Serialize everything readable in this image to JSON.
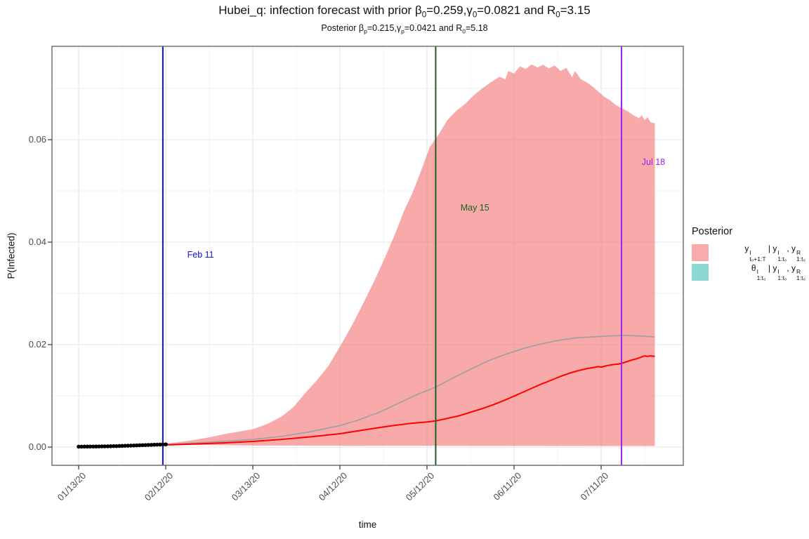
{
  "chart_data": {
    "type": "area",
    "title": "Hubei_q: infection forecast with prior β₀=0.259,γ₀=0.0821 and R₀=3.15",
    "subtitle": "Posterior βₚ=0.215,γₚ=0.0421 and R₀=5.18",
    "title_parts": [
      {
        "t": "Hubei_q: infection forecast with prior β"
      },
      {
        "s": "0"
      },
      {
        "t": "=0.259,γ"
      },
      {
        "s": "0"
      },
      {
        "t": "=0.0821 and R"
      },
      {
        "s": "0"
      },
      {
        "t": "=3.15"
      }
    ],
    "subtitle_parts": [
      {
        "t": "Posterior β"
      },
      {
        "s": "p"
      },
      {
        "t": "=0.215,γ"
      },
      {
        "s": "p"
      },
      {
        "t": "=0.0421 and R"
      },
      {
        "s": "0"
      },
      {
        "t": "=5.18"
      }
    ],
    "x_label": "time",
    "y_label": "P(Infected)",
    "x_domain_days": [
      -9.2,
      208.3
    ],
    "y_domain": [
      -0.00356,
      0.07822
    ],
    "x_ticks": [
      {
        "label": "01/13/20",
        "day": 0
      },
      {
        "label": "02/12/20",
        "day": 30
      },
      {
        "label": "03/13/20",
        "day": 60
      },
      {
        "label": "04/12/20",
        "day": 90
      },
      {
        "label": "05/12/20",
        "day": 120
      },
      {
        "label": "06/11/20",
        "day": 150
      },
      {
        "label": "07/11/20",
        "day": 180
      }
    ],
    "x_minor_days": [
      15,
      45,
      75,
      105,
      135,
      165,
      195
    ],
    "y_ticks": [
      {
        "label": "0.00",
        "value": 0
      },
      {
        "label": "0.02",
        "value": 0.02
      },
      {
        "label": "0.04",
        "value": 0.04
      },
      {
        "label": "0.06",
        "value": 0.06
      }
    ],
    "y_minor": [
      0.01,
      0.03,
      0.05,
      0.07
    ],
    "grid": true,
    "legend_position": "right",
    "colors": {
      "ribbon_fill": "rgba(243,118,118,0.62)",
      "ribbon_legend": "#F8ABAB",
      "theta_legend": "#8BD8D4",
      "median_line": "#FF0000",
      "gray_mean_line": "#A0A0A0",
      "observed_points": "#000000",
      "grid_major": "#E4E4E4",
      "grid_minor": "#F2F2F2",
      "panel_border": "#707070",
      "axis_text": "#4D4D4D"
    },
    "vlines": [
      {
        "label": "Feb 11",
        "date_day": 29,
        "color": "#0F0FDD",
        "label_day": 42,
        "label_value": 0.0374
      },
      {
        "label": "May 15",
        "date_day": 123,
        "color": "#1F5C1F",
        "label_day": 136.5,
        "label_value": 0.0466
      },
      {
        "label": "Jul 18",
        "date_day": 187,
        "color": "#A020F0",
        "label_day": 198,
        "label_value": 0.0555
      }
    ],
    "observed": {
      "name": "observed infected proportion (black points)",
      "days": [
        0,
        1,
        2,
        3,
        4,
        5,
        6,
        7,
        8,
        9,
        10,
        11,
        12,
        13,
        14,
        15,
        16,
        17,
        18,
        19,
        20,
        21,
        22,
        23,
        24,
        25,
        26,
        27,
        28,
        29,
        30
      ],
      "values": [
        8e-05,
        8e-05,
        9e-05,
        9e-05,
        0.0001,
        0.0001,
        0.00011,
        0.00012,
        0.00013,
        0.00014,
        0.00015,
        0.00016,
        0.00018,
        0.00019,
        0.00021,
        0.00023,
        0.00025,
        0.00027,
        0.00029,
        0.00031,
        0.00033,
        0.00035,
        0.00037,
        0.00039,
        0.00041,
        0.00043,
        0.00045,
        0.00047,
        0.00049,
        0.00051,
        0.00053
      ]
    },
    "ribbon": {
      "name": "posterior forecast credible band",
      "upper": [
        [
          29,
          0.0006
        ],
        [
          35,
          0.001
        ],
        [
          40,
          0.0014
        ],
        [
          45,
          0.0019
        ],
        [
          50,
          0.0025
        ],
        [
          55,
          0.003
        ],
        [
          60,
          0.0035
        ],
        [
          65,
          0.0045
        ],
        [
          70,
          0.006
        ],
        [
          74,
          0.0078
        ],
        [
          78,
          0.0105
        ],
        [
          82,
          0.013
        ],
        [
          86,
          0.0158
        ],
        [
          90,
          0.0196
        ],
        [
          94,
          0.0236
        ],
        [
          98,
          0.028
        ],
        [
          102,
          0.0326
        ],
        [
          106,
          0.0376
        ],
        [
          109,
          0.0416
        ],
        [
          112,
          0.046
        ],
        [
          115,
          0.0496
        ],
        [
          118,
          0.054
        ],
        [
          121,
          0.0586
        ],
        [
          124,
          0.061
        ],
        [
          127,
          0.0638
        ],
        [
          130,
          0.0656
        ],
        [
          133,
          0.0669
        ],
        [
          136,
          0.0686
        ],
        [
          139,
          0.07
        ],
        [
          142,
          0.0712
        ],
        [
          145,
          0.0723
        ],
        [
          147,
          0.0718
        ],
        [
          148,
          0.0734
        ],
        [
          150,
          0.0729
        ],
        [
          152,
          0.0743
        ],
        [
          154,
          0.0738
        ],
        [
          156,
          0.0747
        ],
        [
          158,
          0.0741
        ],
        [
          160,
          0.0746
        ],
        [
          162,
          0.0739
        ],
        [
          164,
          0.0745
        ],
        [
          166,
          0.0734
        ],
        [
          168,
          0.074
        ],
        [
          170,
          0.0722
        ],
        [
          171,
          0.0734
        ],
        [
          173,
          0.0718
        ],
        [
          175,
          0.0712
        ],
        [
          177,
          0.0704
        ],
        [
          179,
          0.0694
        ],
        [
          181,
          0.0684
        ],
        [
          183,
          0.0677
        ],
        [
          185,
          0.0668
        ],
        [
          187,
          0.0662
        ],
        [
          189,
          0.0656
        ],
        [
          191,
          0.0648
        ],
        [
          193,
          0.0642
        ],
        [
          194,
          0.0648
        ],
        [
          195,
          0.0638
        ],
        [
          196,
          0.0644
        ],
        [
          197,
          0.0634
        ],
        [
          198.5,
          0.0632
        ]
      ],
      "lower": [
        [
          29,
          0.0005
        ],
        [
          60,
          0.0003
        ],
        [
          120,
          0.00025
        ],
        [
          198.5,
          0.0002
        ]
      ]
    },
    "series": [
      {
        "name": "posterior median forecast (red line)",
        "color": "#FF0000",
        "points": [
          [
            29,
            0.0004
          ],
          [
            40,
            0.0006
          ],
          [
            50,
            0.0008
          ],
          [
            60,
            0.0011
          ],
          [
            70,
            0.0015
          ],
          [
            80,
            0.002
          ],
          [
            90,
            0.0026
          ],
          [
            100,
            0.0035
          ],
          [
            107,
            0.0041
          ],
          [
            114,
            0.0046
          ],
          [
            120,
            0.0049
          ],
          [
            123,
            0.0051
          ],
          [
            127,
            0.0056
          ],
          [
            131,
            0.0061
          ],
          [
            135,
            0.0068
          ],
          [
            139,
            0.0075
          ],
          [
            143,
            0.0083
          ],
          [
            147,
            0.0092
          ],
          [
            151,
            0.0102
          ],
          [
            155,
            0.0112
          ],
          [
            159,
            0.0122
          ],
          [
            163,
            0.0131
          ],
          [
            166,
            0.0138
          ],
          [
            169,
            0.0144
          ],
          [
            172,
            0.0149
          ],
          [
            175,
            0.0153
          ],
          [
            177,
            0.0155
          ],
          [
            179,
            0.0157
          ],
          [
            180,
            0.0156
          ],
          [
            182,
            0.0159
          ],
          [
            184,
            0.0161
          ],
          [
            186,
            0.0162
          ],
          [
            188,
            0.0165
          ],
          [
            190,
            0.0169
          ],
          [
            192,
            0.0172
          ],
          [
            194,
            0.0176
          ],
          [
            195,
            0.0178
          ],
          [
            196,
            0.0177
          ],
          [
            197,
            0.0178
          ],
          [
            198.5,
            0.0177
          ]
        ]
      },
      {
        "name": "mean trajectory (gray line)",
        "color": "#A0A0A0",
        "points": [
          [
            29,
            0.0005
          ],
          [
            40,
            0.0008
          ],
          [
            50,
            0.0011
          ],
          [
            60,
            0.0015
          ],
          [
            70,
            0.0021
          ],
          [
            80,
            0.003
          ],
          [
            90,
            0.0042
          ],
          [
            97,
            0.0054
          ],
          [
            104,
            0.0069
          ],
          [
            110,
            0.0085
          ],
          [
            116,
            0.0101
          ],
          [
            123,
            0.0117
          ],
          [
            129,
            0.0135
          ],
          [
            135,
            0.0152
          ],
          [
            141,
            0.0168
          ],
          [
            147,
            0.0181
          ],
          [
            153,
            0.0192
          ],
          [
            159,
            0.0201
          ],
          [
            165,
            0.0208
          ],
          [
            171,
            0.0213
          ],
          [
            177,
            0.0215
          ],
          [
            183,
            0.0217
          ],
          [
            188,
            0.0218
          ],
          [
            193,
            0.0217
          ],
          [
            198.5,
            0.0215
          ]
        ]
      }
    ],
    "legend": {
      "title": "Posterior",
      "items": [
        {
          "color": "#F8ABAB",
          "label_plain": "y^I_t₀+1:T | y^I_1:t₀, y^R_1:t₀",
          "parts": [
            {
              "b": "y",
              "sup": "I",
              "sub": "t₀+1:T"
            },
            {
              "t": " | "
            },
            {
              "b": "y",
              "sup": "I",
              "sub": "1:t₀"
            },
            {
              "t": ", "
            },
            {
              "b": "y",
              "sup": "R",
              "sub": "1:t₀"
            }
          ]
        },
        {
          "color": "#8BD8D4",
          "label_plain": "θ^I_1:t₀ | y^I_1:t₀, y^R_1:t₀",
          "parts": [
            {
              "b": "θ",
              "sup": "I",
              "sub": "1:t₀"
            },
            {
              "t": " | "
            },
            {
              "b": "y",
              "sup": "I",
              "sub": "1:t₀"
            },
            {
              "t": ", "
            },
            {
              "b": "y",
              "sup": "R",
              "sub": "1:t₀"
            }
          ]
        }
      ]
    }
  }
}
